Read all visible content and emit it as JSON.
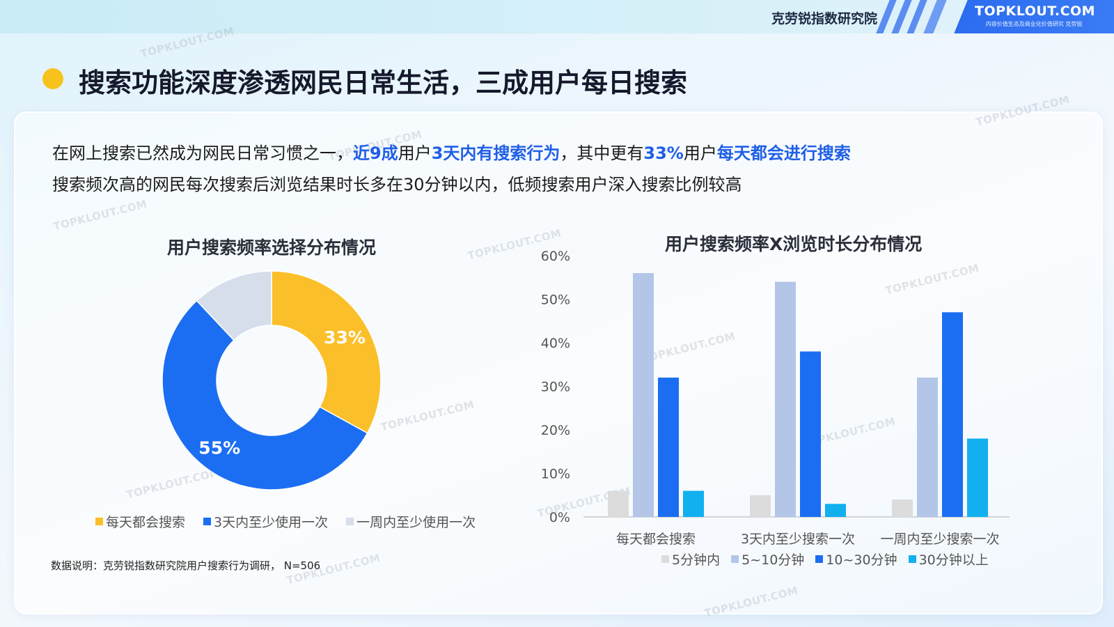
{
  "header": {
    "org_name": "克劳锐指数研究院",
    "brand": "TOPKLOUT.COM",
    "brand_sub": "内容价值生态及商业化价值研究 克劳锐"
  },
  "page_title": "搜索功能深度渗透网民日常生活，三成用户每日搜索",
  "summary": {
    "line1": {
      "p1": "在网上搜索已然成为网民日常习惯之一，",
      "h1": "近9成",
      "p2": "用户",
      "h2": "3天内有搜索行为",
      "p3": "，其中更有",
      "h3": "33%",
      "p4": "用户",
      "h4": "每天都会进行搜索"
    },
    "line2": "搜索频次高的网民每次搜索后浏览结果时长多在30分钟以内，低频搜索用户深入搜索比例较高"
  },
  "watermark_text": "TOPKLOUT.COM",
  "note": "数据说明：克劳锐指数研究院用户搜索行为调研， N=506",
  "colors": {
    "accent_blue": "#1f5fe6",
    "bullet_yellow": "#f7c21c"
  },
  "chart_data": [
    {
      "type": "pie",
      "subtype": "donut",
      "title": "用户搜索频率选择分布情况",
      "labels": [
        "每天都会搜索",
        "3天内至少使用一次",
        "一周内至少使用一次"
      ],
      "values": [
        33,
        55,
        12
      ],
      "data_labels": [
        "33%",
        "55%",
        ""
      ],
      "colors": [
        "#fbbf2a",
        "#1b6ef2",
        "#d6deec"
      ],
      "legend_position": "bottom"
    },
    {
      "type": "bar",
      "title": "用户搜索频率X浏览时长分布情况",
      "categories": [
        "每天都会搜索",
        "3天内至少搜索一次",
        "一周内至少搜索一次"
      ],
      "series": [
        {
          "name": "5分钟内",
          "values": [
            6,
            5,
            4
          ],
          "color": "#dcdcdc"
        },
        {
          "name": "5~10分钟",
          "values": [
            56,
            54,
            32
          ],
          "color": "#b3c6e8"
        },
        {
          "name": "10~30分钟",
          "values": [
            32,
            38,
            47
          ],
          "color": "#1b6ef2"
        },
        {
          "name": "30分钟以上",
          "values": [
            6,
            3,
            18
          ],
          "color": "#12b0ef"
        }
      ],
      "ylim": [
        0,
        60
      ],
      "yticks": [
        "0%",
        "10%",
        "20%",
        "30%",
        "40%",
        "50%",
        "60%"
      ],
      "grid": false,
      "legend_position": "bottom"
    }
  ]
}
